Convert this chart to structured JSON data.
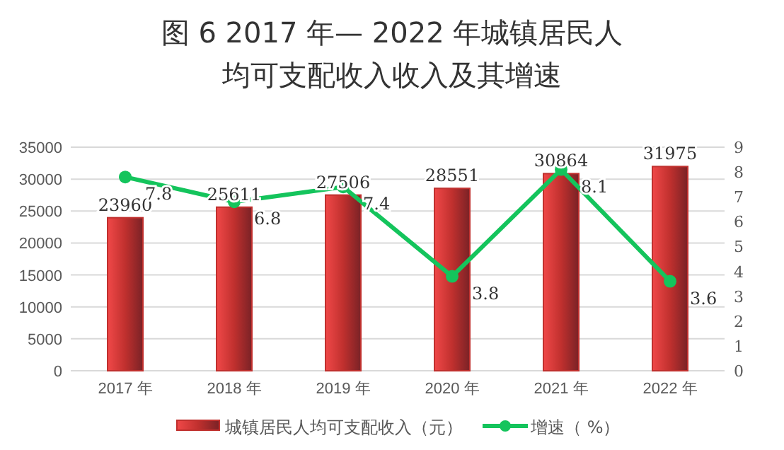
{
  "chart_data": {
    "type": "bar",
    "title": "图 6  2017 年— 2022 年城镇居民人均可支配收入收入及其增速",
    "categories": [
      "2017 年",
      "2018 年",
      "2019 年",
      "2020 年",
      "2021 年",
      "2022 年"
    ],
    "series": [
      {
        "name": "城镇居民人均可支配收入（元）",
        "color": "#c0302e",
        "values": [
          23960,
          25611,
          27506,
          28551,
          30864,
          31975
        ]
      },
      {
        "name": "增速（ %）",
        "type": "line",
        "axis": "y2",
        "color": "#14c45c",
        "marker": "circle",
        "values": [
          7.8,
          6.8,
          7.4,
          3.8,
          8.1,
          3.6
        ]
      }
    ],
    "ylim": [
      0,
      35000
    ],
    "yticks": [
      0,
      5000,
      10000,
      15000,
      20000,
      25000,
      30000,
      35000
    ],
    "y2lim": [
      0,
      9
    ],
    "y2ticks": [
      0,
      1,
      2,
      3,
      4,
      5,
      6,
      7,
      8,
      9
    ],
    "grid": "y",
    "legend": "bottom",
    "data_labels": true
  }
}
